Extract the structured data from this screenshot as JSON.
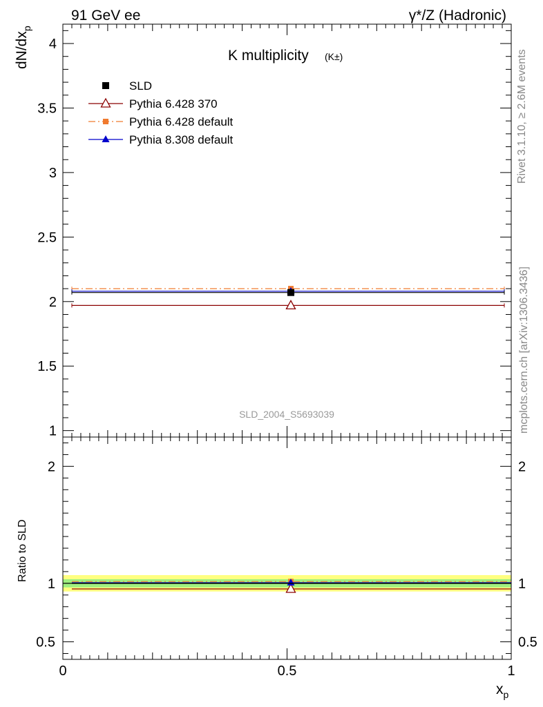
{
  "header": {
    "left": "91 GeV ee",
    "right": "γ*/Z (Hadronic)"
  },
  "side_text": {
    "rivet": "Rivet 3.1.10, ≥ 2.6M events",
    "mcplots": "mcplots.cern.ch [arXiv:1306.3436]"
  },
  "chart_data": [
    {
      "type": "scatter",
      "title_main": "K multiplicity",
      "title_sub": "(K±)",
      "ylabel": "dN/dx_p",
      "watermark": "SLD_2004_S5693039",
      "xlim": [
        0,
        1
      ],
      "ylim": [
        0.95,
        4.15
      ],
      "yticks": [
        "1",
        "1.5",
        "2",
        "2.5",
        "3",
        "3.5",
        "4"
      ],
      "legend_position": "top-left",
      "series": [
        {
          "name": "SLD",
          "color": "#000000",
          "marker": "filled-square",
          "line": "none",
          "points": [
            {
              "x": 0.51,
              "y": 2.07,
              "xerr": [
                0.02,
                1.0
              ]
            }
          ]
        },
        {
          "name": "Pythia 6.428 370",
          "color": "#8b0000",
          "marker": "open-triangle",
          "line": "solid",
          "points": [
            {
              "x": 0.51,
              "y": 1.97,
              "xerr": [
                0.02,
                1.0
              ]
            }
          ]
        },
        {
          "name": "Pythia 6.428 default",
          "color": "#f07a2f",
          "marker": "filled-square-small",
          "line": "dashdot",
          "points": [
            {
              "x": 0.51,
              "y": 2.1,
              "xerr": [
                0.02,
                1.0
              ]
            }
          ]
        },
        {
          "name": "Pythia 8.308 default",
          "color": "#0000cc",
          "marker": "filled-triangle",
          "line": "solid",
          "points": [
            {
              "x": 0.51,
              "y": 2.08,
              "xerr": [
                0.02,
                1.0
              ]
            }
          ]
        }
      ]
    },
    {
      "type": "scatter",
      "ylabel": "Ratio to SLD",
      "xlabel": "x_p",
      "xlim": [
        0,
        1
      ],
      "ylim": [
        0.35,
        2.25
      ],
      "xticks": [
        "0",
        "0.5",
        "1"
      ],
      "yticks": [
        "0.5",
        "1",
        "2"
      ],
      "bands": [
        {
          "low": 0.93,
          "high": 1.07,
          "color": "#ffff80"
        },
        {
          "low": 0.965,
          "high": 1.035,
          "color": "#a0f080"
        }
      ],
      "series": [
        {
          "name": "SLD",
          "color": "#000000",
          "values": [
            1.0
          ]
        },
        {
          "name": "Pythia 6.428 370",
          "color": "#8b0000",
          "values": [
            0.952
          ]
        },
        {
          "name": "Pythia 6.428 default",
          "color": "#f07a2f",
          "values": [
            1.015
          ]
        },
        {
          "name": "Pythia 8.308 default",
          "color": "#0000cc",
          "values": [
            1.005
          ]
        }
      ]
    }
  ]
}
